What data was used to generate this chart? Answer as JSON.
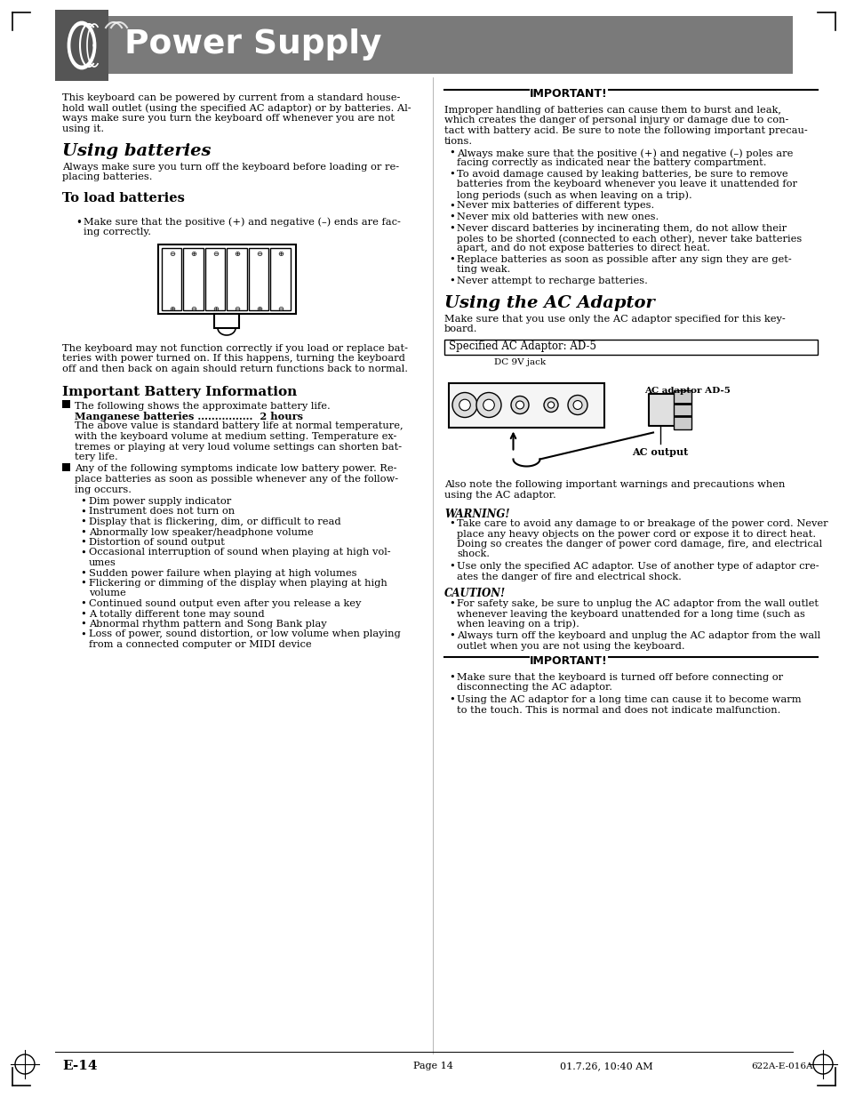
{
  "page_bg": "#ffffff",
  "header_bg": "#7a7a7a",
  "header_text": "Power Supply",
  "header_text_color": "#ffffff",
  "intro_lines": [
    "This keyboard can be powered by current from a standard house-",
    "hold wall outlet (using the specified AC adaptor) or by batteries. Al-",
    "ways make sure you turn the keyboard off whenever you are not",
    "using it."
  ],
  "section1_title": "Using batteries",
  "section1_intro_lines": [
    "Always make sure you turn off the keyboard before loading or re-",
    "placing batteries."
  ],
  "subsection1_title": "To load batteries",
  "load_bullet_lines": [
    "Make sure that the positive (+) and negative (–) ends are fac-",
    "ing correctly."
  ],
  "para_after_battery_lines": [
    "The keyboard may not function correctly if you load or replace bat-",
    "teries with power turned on. If this happens, turning the keyboard",
    "off and then back on again should return functions back to normal."
  ],
  "section2_title": "Important Battery Information",
  "battery_item1_intro": "The following shows the approximate battery life.",
  "battery_item1_bold": "Manganese batteries ................  2 hours",
  "battery_item1_detail_lines": [
    "The above value is standard battery life at normal temperature,",
    "with the keyboard volume at medium setting. Temperature ex-",
    "tremes or playing at very loud volume settings can shorten bat-",
    "tery life."
  ],
  "battery_item2_intro_lines": [
    "Any of the following symptoms indicate low battery power. Re-",
    "place batteries as soon as possible whenever any of the follow-",
    "ing occurs."
  ],
  "battery_symptoms": [
    "Dim power supply indicator",
    "Instrument does not turn on",
    "Display that is flickering, dim, or difficult to read",
    "Abnormally low speaker/headphone volume",
    "Distortion of sound output",
    "Occasional interruption of sound when playing at high vol-|umes",
    "Sudden power failure when playing at high volumes",
    "Flickering or dimming of the display when playing at high|volume",
    "Continued sound output even after you release a key",
    "A totally different tone may sound",
    "Abnormal rhythm pattern and Song Bank play",
    "Loss of power, sound distortion, or low volume when playing|from a connected computer or MIDI device"
  ],
  "right_important1_title": "IMPORTANT!",
  "right_important1_text_lines": [
    "Improper handling of batteries can cause them to burst and leak,",
    "which creates the danger of personal injury or damage due to con-",
    "tact with battery acid. Be sure to note the following important precau-",
    "tions."
  ],
  "right_important1_bullets": [
    [
      "Always make sure that the positive (+) and negative (–) poles are",
      "facing correctly as indicated near the battery compartment."
    ],
    [
      "To avoid damage caused by leaking batteries, be sure to remove",
      "batteries from the keyboard whenever you leave it unattended for",
      "long periods (such as when leaving on a trip)."
    ],
    [
      "Never mix batteries of different types."
    ],
    [
      "Never mix old batteries with new ones."
    ],
    [
      "Never discard batteries by incinerating them, do not allow their",
      "poles to be shorted (connected to each other), never take batteries",
      "apart, and do not expose batteries to direct heat."
    ],
    [
      "Replace batteries as soon as possible after any sign they are get-",
      "ting weak."
    ],
    [
      "Never attempt to recharge batteries."
    ]
  ],
  "right_section2_title": "Using the AC Adaptor",
  "right_section2_intro_lines": [
    "Make sure that you use only the AC adaptor specified for this key-",
    "board."
  ],
  "right_ac_box_text": "Specified AC Adaptor: AD-5",
  "right_dc_label": "DC 9V jack",
  "right_ac_adaptor_label": "AC adaptor AD-5",
  "right_ac_output_label": "AC output",
  "right_also_note_lines": [
    "Also note the following important warnings and precautions when",
    "using the AC adaptor."
  ],
  "right_warning_title": "WARNING!",
  "right_warning_bullets": [
    [
      "Take care to avoid any damage to or breakage of the power cord. Never",
      "place any heavy objects on the power cord or expose it to direct heat.",
      "Doing so creates the danger of power cord damage, fire, and electrical",
      "shock."
    ],
    [
      "Use only the specified AC adaptor. Use of another type of adaptor cre-",
      "ates the danger of fire and electrical shock."
    ]
  ],
  "right_caution_title": "CAUTION!",
  "right_caution_bullets": [
    [
      "For safety sake, be sure to unplug the AC adaptor from the wall outlet",
      "whenever leaving the keyboard unattended for a long time (such as",
      "when leaving on a trip)."
    ],
    [
      "Always turn off the keyboard and unplug the AC adaptor from the wall",
      "outlet when you are not using the keyboard."
    ]
  ],
  "right_important2_title": "IMPORTANT!",
  "right_important2_bullets": [
    [
      "Make sure that the keyboard is turned off before connecting or",
      "disconnecting the AC adaptor."
    ],
    [
      "Using the AC adaptor for a long time can cause it to become warm",
      "to the touch. This is normal and does not indicate malfunction."
    ]
  ],
  "footer_left": "E-14",
  "footer_center": "Page 14",
  "footer_date": "01.7.26, 10:40 AM",
  "footer_right": "622A-E-016A"
}
